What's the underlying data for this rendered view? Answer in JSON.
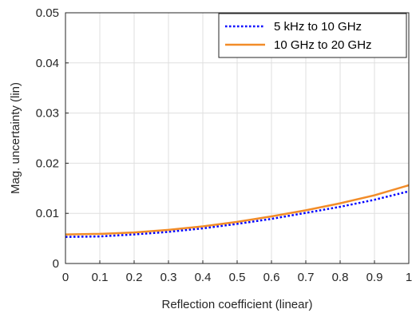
{
  "chart_data": {
    "type": "line",
    "xlabel": "Reflection coefficient (linear)",
    "ylabel": "Mag. uncertainty (lin)",
    "xlim": [
      0,
      1
    ],
    "ylim": [
      0,
      0.05
    ],
    "xticks": [
      0,
      0.1,
      0.2,
      0.3,
      0.4,
      0.5,
      0.6,
      0.7,
      0.8,
      0.9,
      1
    ],
    "xtick_labels": [
      "0",
      "0.1",
      "0.2",
      "0.3",
      "0.4",
      "0.5",
      "0.6",
      "0.7",
      "0.8",
      "0.9",
      "1"
    ],
    "yticks": [
      0,
      0.01,
      0.02,
      0.03,
      0.04,
      0.05
    ],
    "ytick_labels": [
      "0",
      "0.01",
      "0.02",
      "0.03",
      "0.04",
      "0.05"
    ],
    "grid": true,
    "legend_position": "top-right",
    "x": [
      0,
      0.1,
      0.2,
      0.3,
      0.4,
      0.5,
      0.6,
      0.7,
      0.8,
      0.9,
      1.0
    ],
    "series": [
      {
        "name": "5 kHz to 10 GHz",
        "color": "#0000ff",
        "style": "dotted",
        "values": [
          0.0053,
          0.0054,
          0.0058,
          0.0063,
          0.007,
          0.0079,
          0.0089,
          0.0101,
          0.0113,
          0.0127,
          0.0144
        ]
      },
      {
        "name": "10 GHz to 20 GHz",
        "color": "#f28c28",
        "style": "solid",
        "values": [
          0.0058,
          0.0059,
          0.0062,
          0.0067,
          0.0074,
          0.0083,
          0.0094,
          0.0106,
          0.012,
          0.0136,
          0.0156
        ]
      }
    ]
  }
}
